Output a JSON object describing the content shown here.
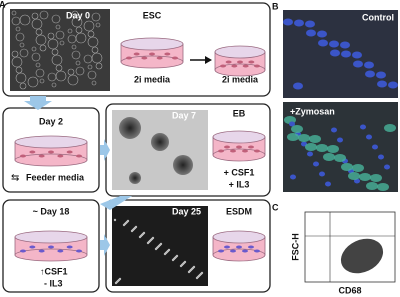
{
  "panel_a": {
    "label": "A",
    "step_1": {
      "day": "Day 0",
      "dish_label": "ESC",
      "media_1": "2i media",
      "media_2": "2i media"
    },
    "step_2": {
      "day": "Day 2",
      "media": "Feeder media"
    },
    "step_3": {
      "day": "Day 7",
      "dish_label": "EB",
      "add_1": "+ CSF1",
      "add_2": "+ IL3"
    },
    "step_4": {
      "day": "~ Day 18",
      "add_1": "↑CSF1",
      "add_2": "- IL3"
    },
    "step_5": {
      "day": "Day 25",
      "dish_label": "ESDM"
    }
  },
  "panel_b": {
    "label": "B",
    "image_1": "Control",
    "image_2": "+Zymosan"
  },
  "panel_c": {
    "label": "C",
    "y_label": "FSC-H",
    "x_label": "CD68"
  }
}
